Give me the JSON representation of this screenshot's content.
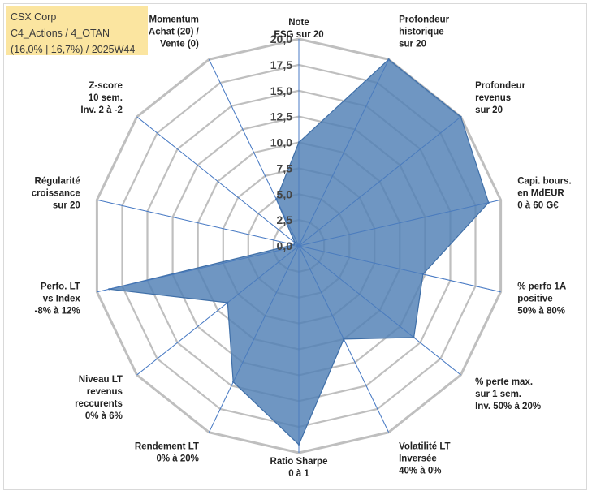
{
  "info": {
    "line1": "CSX Corp",
    "line2": "C4_Actions / 4_OTAN",
    "line3": "(16,0% | 16,7%) / 2025W44"
  },
  "colors": {
    "fill": "#4f7fb5",
    "stroke": "#3f6fa8",
    "grid": "#bfbfbf",
    "spoke": "#4a7bc4",
    "box": "#fbe5a0"
  },
  "chart_data": {
    "type": "radar",
    "title": "",
    "rlim": [
      0,
      20
    ],
    "tick_labels": [
      "0,0",
      "2,5",
      "5,0",
      "7,5",
      "10,0",
      "12,5",
      "15,0",
      "17,5",
      "20,0"
    ],
    "categories": [
      [
        "Note",
        "ESG sur 20"
      ],
      [
        "Profondeur",
        "historique",
        "sur 20"
      ],
      [
        "Profondeur",
        "revenus",
        "sur 20"
      ],
      [
        "Capi. bours.",
        "en MdEUR",
        "0 à 60 G€"
      ],
      [
        "% perfo 1A",
        "positive",
        "50% à 80%"
      ],
      [
        "% perte max.",
        "sur 1 sem.",
        "Inv. 50% à 20%"
      ],
      [
        "Volatilité LT",
        "Inversée",
        "40% à 0%"
      ],
      [
        "Ratio Sharpe",
        "0 à 1"
      ],
      [
        "Rendement LT",
        "0% à 20%"
      ],
      [
        "Niveau LT",
        "revenus",
        "reccurents",
        "0% à 6%"
      ],
      [
        "Perfo. LT",
        "vs Index",
        "-8% à 12%"
      ],
      [
        "Régularité",
        "croissance",
        "sur 20"
      ],
      [
        "Z-score",
        "10 sem.",
        "Inv. 2 à -2"
      ],
      [
        "Momentum",
        "Achat (20) /",
        "Vente (0)"
      ]
    ],
    "series": [
      {
        "name": "CSX Corp",
        "values": [
          10.0,
          20.0,
          20.0,
          18.8,
          12.3,
          14.2,
          10.0,
          19.2,
          14.6,
          8.8,
          18.8,
          0.5,
          0.5,
          5.0
        ]
      }
    ]
  }
}
